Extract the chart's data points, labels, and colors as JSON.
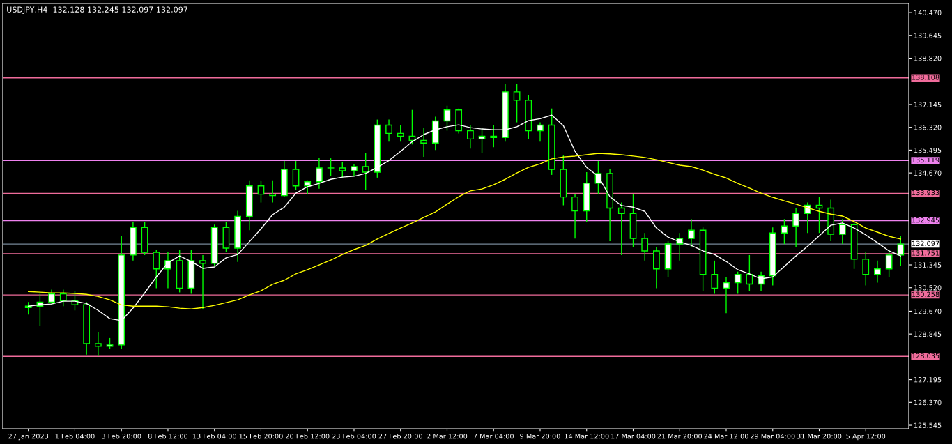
{
  "chart_data": {
    "type": "candlestick",
    "title": "USDJPY,H4  132.128 132.245 132.097 132.097",
    "categories": [
      "27 Jan 2023",
      null,
      null,
      null,
      "1 Feb 04:00",
      null,
      null,
      null,
      "3 Feb 20:00",
      null,
      null,
      null,
      "8 Feb 12:00",
      null,
      null,
      null,
      "13 Feb 04:00",
      null,
      null,
      null,
      "15 Feb 20:00",
      null,
      null,
      null,
      "20 Feb 12:00",
      null,
      null,
      null,
      "23 Feb 04:00",
      null,
      null,
      null,
      "27 Feb 20:00",
      null,
      null,
      null,
      "2 Mar 12:00",
      null,
      null,
      null,
      "7 Mar 04:00",
      null,
      null,
      null,
      "9 Mar 20:00",
      null,
      null,
      null,
      "14 Mar 12:00",
      null,
      null,
      null,
      "17 Mar 04:00",
      null,
      null,
      null,
      "21 Mar 20:00",
      null,
      null,
      null,
      "24 Mar 12:00",
      null,
      null,
      null,
      "29 Mar 04:00",
      null,
      null,
      null,
      "31 Mar 20:00",
      null,
      null,
      null,
      "5 Apr 12:00",
      null,
      null,
      null
    ],
    "color": "#00ff00",
    "ohlc": [
      [
        129.8,
        130.0,
        129.55,
        129.85
      ],
      [
        129.85,
        130.3,
        129.15,
        130.0
      ],
      [
        130.0,
        130.45,
        129.9,
        130.3
      ],
      [
        130.3,
        130.45,
        129.85,
        130.05
      ],
      [
        130.05,
        130.4,
        129.7,
        129.9
      ],
      [
        129.9,
        130.0,
        128.1,
        128.5
      ],
      [
        128.5,
        128.9,
        128.05,
        128.4
      ],
      [
        128.4,
        128.7,
        128.3,
        128.45
      ],
      [
        128.45,
        132.4,
        128.3,
        131.7
      ],
      [
        131.7,
        132.9,
        131.5,
        132.7
      ],
      [
        132.7,
        132.9,
        131.7,
        131.8
      ],
      [
        131.8,
        131.9,
        130.5,
        131.2
      ],
      [
        131.2,
        131.8,
        130.5,
        131.5
      ],
      [
        131.5,
        131.9,
        130.35,
        130.5
      ],
      [
        130.5,
        131.9,
        130.3,
        131.5
      ],
      [
        131.5,
        131.7,
        129.75,
        131.4
      ],
      [
        131.4,
        132.8,
        131.3,
        132.7
      ],
      [
        132.7,
        132.9,
        131.8,
        131.95
      ],
      [
        131.95,
        133.3,
        131.45,
        133.1
      ],
      [
        133.1,
        134.4,
        132.6,
        134.2
      ],
      [
        134.2,
        134.4,
        133.6,
        133.9
      ],
      [
        133.9,
        134.4,
        133.6,
        133.85
      ],
      [
        133.85,
        135.1,
        133.8,
        134.8
      ],
      [
        134.8,
        135.1,
        134.05,
        134.2
      ],
      [
        134.2,
        134.4,
        133.9,
        134.35
      ],
      [
        134.35,
        135.2,
        134.1,
        134.85
      ],
      [
        134.85,
        135.2,
        134.55,
        134.85
      ],
      [
        134.85,
        135.05,
        134.5,
        134.75
      ],
      [
        134.75,
        135.0,
        134.55,
        134.9
      ],
      [
        134.9,
        135.4,
        134.05,
        134.7
      ],
      [
        134.7,
        136.6,
        134.5,
        136.4
      ],
      [
        136.4,
        136.6,
        135.8,
        136.1
      ],
      [
        136.1,
        136.4,
        135.8,
        136.0
      ],
      [
        136.0,
        136.95,
        135.7,
        135.85
      ],
      [
        135.85,
        136.3,
        135.25,
        135.75
      ],
      [
        135.75,
        136.7,
        135.5,
        136.55
      ],
      [
        136.55,
        137.1,
        136.2,
        136.95
      ],
      [
        136.95,
        137.0,
        136.1,
        136.2
      ],
      [
        136.2,
        136.4,
        135.55,
        135.9
      ],
      [
        135.9,
        136.3,
        135.4,
        136.0
      ],
      [
        136.0,
        136.4,
        135.6,
        135.95
      ],
      [
        135.95,
        137.9,
        135.8,
        137.6
      ],
      [
        137.6,
        137.9,
        136.5,
        137.3
      ],
      [
        137.3,
        137.5,
        135.9,
        136.2
      ],
      [
        136.2,
        136.5,
        135.8,
        136.4
      ],
      [
        136.4,
        137.0,
        134.6,
        134.8
      ],
      [
        134.8,
        135.3,
        133.5,
        133.8
      ],
      [
        133.8,
        133.9,
        132.3,
        133.3
      ],
      [
        133.3,
        134.7,
        132.9,
        134.3
      ],
      [
        134.3,
        135.1,
        133.9,
        134.65
      ],
      [
        134.65,
        134.8,
        132.2,
        133.4
      ],
      [
        133.4,
        133.6,
        131.7,
        133.2
      ],
      [
        133.2,
        133.9,
        132.0,
        132.3
      ],
      [
        132.3,
        132.5,
        131.5,
        131.85
      ],
      [
        131.85,
        132.0,
        130.5,
        131.2
      ],
      [
        131.2,
        132.2,
        130.9,
        132.1
      ],
      [
        132.1,
        132.5,
        131.5,
        132.3
      ],
      [
        132.3,
        133.0,
        132.0,
        132.6
      ],
      [
        132.6,
        132.7,
        130.4,
        131.0
      ],
      [
        131.0,
        131.5,
        130.3,
        130.5
      ],
      [
        130.5,
        130.9,
        129.6,
        130.7
      ],
      [
        130.7,
        131.1,
        130.3,
        131.0
      ],
      [
        131.0,
        131.7,
        130.4,
        130.65
      ],
      [
        130.65,
        131.1,
        130.4,
        130.95
      ],
      [
        130.95,
        132.7,
        130.6,
        132.5
      ],
      [
        132.5,
        133.0,
        132.1,
        132.75
      ],
      [
        132.75,
        133.4,
        132.0,
        133.2
      ],
      [
        133.2,
        133.6,
        132.5,
        133.5
      ],
      [
        133.5,
        133.8,
        132.5,
        133.4
      ],
      [
        133.4,
        133.7,
        132.2,
        132.45
      ],
      [
        132.45,
        133.0,
        132.1,
        132.8
      ],
      [
        132.8,
        132.9,
        131.2,
        131.55
      ],
      [
        131.55,
        131.8,
        130.6,
        131.0
      ],
      [
        131.0,
        131.5,
        130.7,
        131.2
      ],
      [
        131.2,
        131.9,
        130.9,
        131.7
      ],
      [
        131.7,
        132.4,
        131.3,
        132.097
      ]
    ],
    "series": [
      {
        "type": "line",
        "color": "#ffffff",
        "values": [
          129.85,
          129.9,
          129.93,
          130.03,
          130.03,
          129.95,
          129.7,
          129.4,
          129.33,
          129.78,
          130.33,
          130.91,
          131.42,
          131.67,
          131.47,
          131.22,
          131.27,
          131.6,
          131.72,
          132.18,
          132.65,
          133.16,
          133.43,
          133.94,
          134.17,
          134.29,
          134.44,
          134.52,
          134.55,
          134.65,
          134.87,
          135.12,
          135.45,
          135.8,
          136.06,
          136.23,
          136.34,
          136.41,
          136.31,
          136.26,
          136.23,
          136.23,
          136.34,
          136.56,
          136.63,
          136.76,
          136.38,
          135.45,
          134.87,
          134.55,
          133.81,
          133.49,
          133.43,
          133.28,
          132.68,
          132.35,
          132.18,
          132.05,
          131.85,
          131.72,
          131.47,
          131.17,
          131.02,
          130.84,
          130.91,
          131.29,
          131.67,
          132.02,
          132.4,
          132.78,
          132.86,
          132.68,
          132.43,
          132.15,
          131.85,
          131.67
        ]
      },
      {
        "type": "line",
        "color": "#ffff00",
        "values": [
          130.38,
          130.36,
          130.33,
          130.33,
          130.31,
          130.28,
          130.2,
          130.08,
          129.9,
          129.85,
          129.85,
          129.85,
          129.83,
          129.78,
          129.75,
          129.8,
          129.88,
          129.98,
          130.08,
          130.26,
          130.41,
          130.64,
          130.79,
          131.02,
          131.17,
          131.34,
          131.52,
          131.72,
          131.9,
          132.05,
          132.28,
          132.48,
          132.68,
          132.86,
          133.06,
          133.26,
          133.54,
          133.81,
          134.02,
          134.09,
          134.24,
          134.44,
          134.67,
          134.87,
          135.0,
          135.18,
          135.25,
          135.28,
          135.33,
          135.38,
          135.36,
          135.33,
          135.28,
          135.23,
          135.15,
          135.05,
          134.95,
          134.9,
          134.77,
          134.62,
          134.49,
          134.29,
          134.12,
          133.94,
          133.79,
          133.66,
          133.54,
          133.41,
          133.28,
          133.18,
          133.11,
          132.91,
          132.68,
          132.53,
          132.38,
          132.28
        ]
      }
    ],
    "ylim": [
      125.42,
      140.8
    ],
    "yticks": [
      {
        "value": 140.47,
        "label": "140.470"
      },
      {
        "value": 139.645,
        "label": "139.645"
      },
      {
        "value": 138.82,
        "label": "138.820"
      },
      {
        "value": 137.145,
        "label": "137.145"
      },
      {
        "value": 136.32,
        "label": "136.320"
      },
      {
        "value": 135.495,
        "label": "135.495"
      },
      {
        "value": 134.67,
        "label": "134.670"
      },
      {
        "value": 131.345,
        "label": "131.345"
      },
      {
        "value": 130.52,
        "label": "130.520"
      },
      {
        "value": 129.67,
        "label": "129.670"
      },
      {
        "value": 128.845,
        "label": "128.845"
      },
      {
        "value": 127.195,
        "label": "127.195"
      },
      {
        "value": 126.37,
        "label": "126.370"
      },
      {
        "value": 125.545,
        "label": "125.545"
      }
    ],
    "ref_lines": [
      {
        "axis": "y",
        "value": 138.108,
        "label": "138.108",
        "color": "#f06c9b"
      },
      {
        "axis": "y",
        "value": 135.119,
        "label": "135.119",
        "color": "#ee82ee"
      },
      {
        "axis": "y",
        "value": 133.933,
        "label": "133.933",
        "color": "#f06c9b"
      },
      {
        "axis": "y",
        "value": 132.945,
        "label": "132.945",
        "color": "#ee82ee"
      },
      {
        "axis": "y",
        "value": 132.097,
        "label": "132.097",
        "color": "#778899"
      },
      {
        "axis": "y",
        "value": 131.751,
        "label": "131.751",
        "color": "#f06c9b"
      },
      {
        "axis": "y",
        "value": 130.258,
        "label": "130.258",
        "color": "#f06c9b"
      },
      {
        "axis": "y",
        "value": 128.035,
        "label": "128.035",
        "color": "#f06c9b"
      }
    ]
  }
}
